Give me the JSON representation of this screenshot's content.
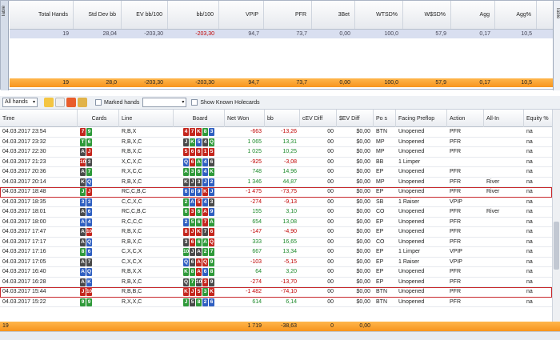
{
  "side_tab": "Table",
  "summary": {
    "headers": [
      "Total Hands",
      "Std Dev bb",
      "EV bb/100",
      "bb/100",
      "VPIP",
      "PFR",
      "3Bet",
      "WTSD%",
      "W$SD%",
      "Agg",
      "Agg%"
    ],
    "values": [
      "19",
      "28,04",
      "-203,30",
      "-203,30",
      "94,7",
      "73,7",
      "0,00",
      "100,0",
      "57,9",
      "0,17",
      "10,5"
    ],
    "totals": [
      "19",
      "28,0",
      "-203,30",
      "-203,30",
      "94,7",
      "73,7",
      "0,00",
      "100,0",
      "57,9",
      "0,17",
      "10,5"
    ]
  },
  "toolbar": {
    "filter_value": "All hands",
    "marked_hands_label": "Marked hands",
    "show_holecards_label": "Show Known Holecards"
  },
  "grid": {
    "headers": [
      "Time",
      "Cards",
      "Line",
      "Board",
      "Net Won",
      "bb",
      "cEV Diff",
      "$EV Diff",
      "Po s",
      "Facing Preflop",
      "Action",
      "All-In",
      "Equity %"
    ],
    "rows": [
      {
        "time": "04.03.2017 23:54",
        "cards": [
          [
            "7",
            "h"
          ],
          [
            "9",
            "c"
          ]
        ],
        "line": "R,B,X",
        "board": [
          [
            "4",
            "h"
          ],
          [
            "7",
            "h"
          ],
          [
            "K",
            "h"
          ],
          [
            "8",
            "c"
          ],
          [
            "3",
            "d"
          ]
        ],
        "net": "-663",
        "bb": "-13,26",
        "cev": "00",
        "sev": "$0,00",
        "pos": "BTN",
        "facing": "Unopened",
        "action": "PFR",
        "allin": "",
        "equity": "na"
      },
      {
        "time": "04.03.2017 23:32",
        "cards": [
          [
            "T",
            "c"
          ],
          [
            "6",
            "c"
          ]
        ],
        "line": "R,B,X,C",
        "board": [
          [
            "J",
            "s"
          ],
          [
            "K",
            "c"
          ],
          [
            "5",
            "d"
          ],
          [
            "4",
            "s"
          ],
          [
            "Q",
            "c"
          ]
        ],
        "net": "1 065",
        "bb": "13,31",
        "cev": "00",
        "sev": "$0,00",
        "pos": "MP",
        "facing": "Unopened",
        "action": "PFR",
        "allin": "",
        "equity": "na"
      },
      {
        "time": "04.03.2017 22:30",
        "cards": [
          [
            "A",
            "s"
          ],
          [
            "J",
            "h"
          ]
        ],
        "line": "R,B,X,C",
        "board": [
          [
            "5",
            "h"
          ],
          [
            "6",
            "h"
          ],
          [
            "6",
            "h"
          ],
          [
            "1",
            "h"
          ],
          [
            "5",
            "h"
          ]
        ],
        "net": "1 025",
        "bb": "10,25",
        "cev": "00",
        "sev": "$0,00",
        "pos": "MP",
        "facing": "Unopened",
        "action": "PFR",
        "allin": "",
        "equity": "na"
      },
      {
        "time": "04.03.2017 21:23",
        "cards": [
          [
            "10",
            "h"
          ],
          [
            "3",
            "s"
          ]
        ],
        "line": "X,C,X,C",
        "board": [
          [
            "Q",
            "d"
          ],
          [
            "6",
            "h"
          ],
          [
            "A",
            "c"
          ],
          [
            "4",
            "d"
          ],
          [
            "6",
            "s"
          ]
        ],
        "net": "-925",
        "bb": "-3,08",
        "cev": "00",
        "sev": "$0,00",
        "pos": "BB",
        "facing": "1 Limper",
        "action": "",
        "allin": "",
        "equity": "na"
      },
      {
        "time": "04.03.2017 20:36",
        "cards": [
          [
            "A",
            "s"
          ],
          [
            "7",
            "c"
          ]
        ],
        "line": "R,X,C,C",
        "board": [
          [
            "A",
            "c"
          ],
          [
            "3",
            "c"
          ],
          [
            "6",
            "c"
          ],
          [
            "4",
            "d"
          ],
          [
            "K",
            "c"
          ]
        ],
        "net": "748",
        "bb": "14,96",
        "cev": "00",
        "sev": "$0,00",
        "pos": "EP",
        "facing": "Unopened",
        "action": "PFR",
        "allin": "",
        "equity": "na"
      },
      {
        "time": "04.03.2017 20:14",
        "cards": [
          [
            "K",
            "s"
          ],
          [
            "Q",
            "d"
          ]
        ],
        "line": "R,B,X,C",
        "board": [
          [
            "K",
            "s"
          ],
          [
            "J",
            "s"
          ],
          [
            "3",
            "s"
          ],
          [
            "J",
            "d"
          ],
          [
            "2",
            "d"
          ]
        ],
        "net": "1 346",
        "bb": "44,87",
        "cev": "00",
        "sev": "$0,00",
        "pos": "MP",
        "facing": "Unopened",
        "action": "PFR",
        "allin": "River",
        "equity": "na"
      },
      {
        "time": "04.03.2017 18:48",
        "cards": [
          [
            "J",
            "c"
          ],
          [
            "J",
            "h"
          ]
        ],
        "line": "RC,C,B,C",
        "board": [
          [
            "6",
            "d"
          ],
          [
            "8",
            "d"
          ],
          [
            "9",
            "d"
          ],
          [
            "K",
            "h"
          ],
          [
            "J",
            "d"
          ]
        ],
        "net": "-1 475",
        "bb": "-73,75",
        "cev": "00",
        "sev": "$0,00",
        "pos": "EP",
        "facing": "Unopened",
        "action": "PFR",
        "allin": "River",
        "equity": "na",
        "selected": true
      },
      {
        "time": "04.03.2017 18:35",
        "cards": [
          [
            "3",
            "d"
          ],
          [
            "3",
            "d"
          ]
        ],
        "line": "C,C,X,C",
        "board": [
          [
            "2",
            "c"
          ],
          [
            "A",
            "d"
          ],
          [
            "5",
            "h"
          ],
          [
            "4",
            "d"
          ],
          [
            "3",
            "s"
          ]
        ],
        "net": "-274",
        "bb": "-9,13",
        "cev": "00",
        "sev": "$0,00",
        "pos": "SB",
        "facing": "1 Raiser",
        "action": "VPIP",
        "allin": "",
        "equity": "na"
      },
      {
        "time": "04.03.2017 18:01",
        "cards": [
          [
            "A",
            "s"
          ],
          [
            "6",
            "d"
          ]
        ],
        "line": "RC,C,B,C",
        "board": [
          [
            "6",
            "c"
          ],
          [
            "3",
            "h"
          ],
          [
            "6",
            "c"
          ],
          [
            "A",
            "h"
          ],
          [
            "9",
            "d"
          ]
        ],
        "net": "155",
        "bb": "3,10",
        "cev": "00",
        "sev": "$0,00",
        "pos": "CO",
        "facing": "Unopened",
        "action": "PFR",
        "allin": "River",
        "equity": "na"
      },
      {
        "time": "04.03.2017 18:00",
        "cards": [
          [
            "A",
            "d"
          ],
          [
            "4",
            "d"
          ]
        ],
        "line": "R,C,C,C",
        "board": [
          [
            "2",
            "d"
          ],
          [
            "5",
            "c"
          ],
          [
            "6",
            "c"
          ],
          [
            "7",
            "h"
          ],
          [
            "A",
            "c"
          ]
        ],
        "net": "654",
        "bb": "13,08",
        "cev": "00",
        "sev": "$0,00",
        "pos": "EP",
        "facing": "Unopened",
        "action": "PFR",
        "allin": "",
        "equity": "na"
      },
      {
        "time": "04.03.2017 17:47",
        "cards": [
          [
            "A",
            "s"
          ],
          [
            "10",
            "h"
          ]
        ],
        "line": "R,B,X,C",
        "board": [
          [
            "8",
            "h"
          ],
          [
            "J",
            "h"
          ],
          [
            "K",
            "h"
          ],
          [
            "7",
            "s"
          ],
          [
            "6",
            "h"
          ]
        ],
        "net": "-147",
        "bb": "-4,90",
        "cev": "00",
        "sev": "$0,00",
        "pos": "EP",
        "facing": "Unopened",
        "action": "PFR",
        "allin": "",
        "equity": "na"
      },
      {
        "time": "04.03.2017 17:17",
        "cards": [
          [
            "A",
            "s"
          ],
          [
            "Q",
            "d"
          ]
        ],
        "line": "R,B,X,C",
        "board": [
          [
            "3",
            "s"
          ],
          [
            "6",
            "h"
          ],
          [
            "6",
            "c"
          ],
          [
            "A",
            "c"
          ],
          [
            "Q",
            "h"
          ]
        ],
        "net": "333",
        "bb": "16,65",
        "cev": "00",
        "sev": "$0,00",
        "pos": "CO",
        "facing": "Unopened",
        "action": "PFR",
        "allin": "",
        "equity": "na"
      },
      {
        "time": "04.03.2017 17:16",
        "cards": [
          [
            "8",
            "c"
          ],
          [
            "6",
            "d"
          ]
        ],
        "line": "C,X,C,X",
        "board": [
          [
            "10",
            "c"
          ],
          [
            "J",
            "s"
          ],
          [
            "A",
            "s"
          ],
          [
            "2",
            "c"
          ],
          [
            "7",
            "c"
          ]
        ],
        "net": "667",
        "bb": "13,34",
        "cev": "00",
        "sev": "$0,00",
        "pos": "EP",
        "facing": "1 Limper",
        "action": "VPIP",
        "allin": "",
        "equity": "na"
      },
      {
        "time": "04.03.2017 17:05",
        "cards": [
          [
            "A",
            "s"
          ],
          [
            "7",
            "s"
          ]
        ],
        "line": "C,X,C,X",
        "board": [
          [
            "Q",
            "d"
          ],
          [
            "6",
            "s"
          ],
          [
            "A",
            "h"
          ],
          [
            "Q",
            "h"
          ],
          [
            "9",
            "c"
          ]
        ],
        "net": "-103",
        "bb": "-5,15",
        "cev": "00",
        "sev": "$0,00",
        "pos": "EP",
        "facing": "1 Raiser",
        "action": "VPIP",
        "allin": "",
        "equity": "na"
      },
      {
        "time": "04.03.2017 16:40",
        "cards": [
          [
            "A",
            "d"
          ],
          [
            "Q",
            "d"
          ]
        ],
        "line": "R,B,X,X",
        "board": [
          [
            "K",
            "c"
          ],
          [
            "8",
            "c"
          ],
          [
            "A",
            "h"
          ],
          [
            "6",
            "d"
          ],
          [
            "8",
            "c"
          ]
        ],
        "net": "64",
        "bb": "3,20",
        "cev": "00",
        "sev": "$0,00",
        "pos": "EP",
        "facing": "Unopened",
        "action": "PFR",
        "allin": "",
        "equity": "na"
      },
      {
        "time": "04.03.2017 16:28",
        "cards": [
          [
            "A",
            "s"
          ],
          [
            "K",
            "d"
          ]
        ],
        "line": "R,B,X,C",
        "board": [
          [
            "Q",
            "s"
          ],
          [
            "7",
            "c"
          ],
          [
            "10",
            "s"
          ],
          [
            "3",
            "h"
          ],
          [
            "9",
            "s"
          ]
        ],
        "net": "-274",
        "bb": "-13,70",
        "cev": "00",
        "sev": "$0,00",
        "pos": "EP",
        "facing": "Unopened",
        "action": "PFR",
        "allin": "",
        "equity": "na"
      },
      {
        "time": "04.03.2017 15:44",
        "cards": [
          [
            "J",
            "h"
          ],
          [
            "10",
            "h"
          ]
        ],
        "line": "R,B,B,C",
        "board": [
          [
            "K",
            "h"
          ],
          [
            "J",
            "h"
          ],
          [
            "5",
            "h"
          ],
          [
            "3",
            "c"
          ],
          [
            "K",
            "h"
          ]
        ],
        "net": "-1 482",
        "bb": "-74,10",
        "cev": "00",
        "sev": "$0,00",
        "pos": "BTN",
        "facing": "Unopened",
        "action": "PFR",
        "allin": "",
        "equity": "na",
        "selected": true
      },
      {
        "time": "04.03.2017 15:22",
        "cards": [
          [
            "9",
            "c"
          ],
          [
            "9",
            "c"
          ]
        ],
        "line": "R,X,X,C",
        "board": [
          [
            "J",
            "c"
          ],
          [
            "5",
            "s"
          ],
          [
            "8",
            "c"
          ],
          [
            "2",
            "d"
          ],
          [
            "6",
            "d"
          ]
        ],
        "net": "614",
        "bb": "6,14",
        "cev": "00",
        "sev": "$0,00",
        "pos": "BTN",
        "facing": "Unopened",
        "action": "PFR",
        "allin": "",
        "equity": "na"
      }
    ],
    "totals": {
      "count": "19",
      "net": "1 719",
      "bb": "-38,63",
      "cev": "0",
      "sev": "0,00"
    }
  },
  "colors": {
    "accent_orange": "#f7941d",
    "negative": "#c00000",
    "selection_border": "#c8272b",
    "summary_row": "#d9dff0"
  }
}
